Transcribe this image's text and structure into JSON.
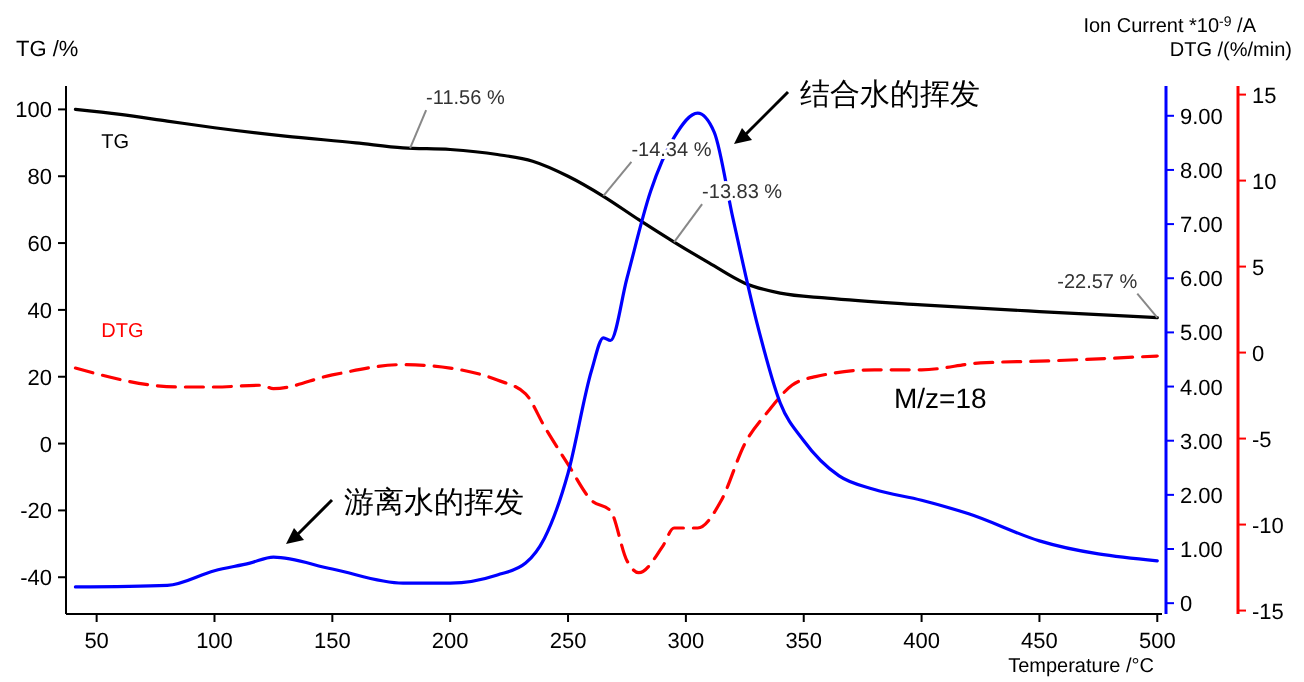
{
  "chart_data": {
    "type": "line",
    "xlabel": "Temperature /°C",
    "ylabel": "TG /%",
    "y2label": "Ion Current *10$^{-9}$ /A",
    "y3label": "DTG /(%/min)",
    "xlim": [
      37,
      502
    ],
    "xticks": [
      50,
      100,
      150,
      200,
      250,
      300,
      350,
      400,
      450,
      500
    ],
    "ylim": [
      -51,
      107
    ],
    "yticks": [
      -40,
      -20,
      0,
      20,
      40,
      60,
      80,
      100
    ],
    "y2lim": [
      -0.2,
      9.55
    ],
    "y2ticks": [
      {
        "value": 0,
        "label": "0"
      },
      {
        "value": 1,
        "label": "1.00"
      },
      {
        "value": 2,
        "label": "2.00"
      },
      {
        "value": 3,
        "label": "3.00"
      },
      {
        "value": 4,
        "label": "4.00"
      },
      {
        "value": 5,
        "label": "5.00"
      },
      {
        "value": 6,
        "label": "6.00"
      },
      {
        "value": 7,
        "label": "7.00"
      },
      {
        "value": 8,
        "label": "8.00"
      },
      {
        "value": 9,
        "label": "9.00"
      }
    ],
    "y3lim": [
      -15.2,
      15.5
    ],
    "y3ticks": [
      -15,
      -10,
      -5,
      0,
      5,
      10,
      15
    ],
    "grid": false,
    "series": [
      {
        "name": "TG",
        "color": "#000000",
        "axis": "y",
        "line_style": "solid",
        "x": [
          41,
          60,
          80,
          100,
          130,
          160,
          180,
          200,
          220,
          235,
          250,
          265,
          280,
          295,
          310,
          325,
          340,
          360,
          400,
          450,
          500
        ],
        "values": [
          100,
          98.5,
          96.5,
          94.5,
          92,
          90,
          88.5,
          88,
          86.5,
          84.5,
          80,
          74,
          67,
          60.3,
          54,
          48,
          45,
          43.5,
          41.5,
          39.5,
          37.7
        ]
      },
      {
        "name": "DTG",
        "color": "#ff0000",
        "axis": "y3",
        "line_style": "dashed",
        "x": [
          41,
          85,
          100,
          120,
          125,
          150,
          180,
          200,
          220,
          232,
          240,
          250,
          260,
          268,
          275,
          280,
          290,
          295,
          305,
          315,
          325,
          335,
          345,
          355,
          380,
          400,
          425,
          450,
          500
        ],
        "values": [
          -0.9,
          -2,
          -2,
          -1.9,
          -2.1,
          -1.3,
          -0.7,
          -0.9,
          -1.6,
          -2.4,
          -4.3,
          -6.5,
          -8.6,
          -9.2,
          -12.1,
          -12.8,
          -11.3,
          -10.2,
          -10.2,
          -8.6,
          -5.3,
          -3.4,
          -1.9,
          -1.4,
          -1,
          -1,
          -0.6,
          -0.5,
          -0.2
        ]
      },
      {
        "color": "#0000ff",
        "axis": "y2",
        "line_style": "solid",
        "x": [
          41,
          80,
          100,
          115,
          125,
          150,
          180,
          200,
          220,
          232,
          240,
          250,
          260,
          265,
          268,
          275,
          285,
          295,
          305,
          312,
          320,
          330,
          340,
          350,
          365,
          380,
          400,
          420,
          450,
          500
        ],
        "values": [
          0.3,
          0.33,
          0.6,
          0.74,
          0.85,
          0.63,
          0.37,
          0.37,
          0.52,
          0.74,
          1.2,
          2.4,
          4.3,
          4.9,
          4.85,
          6,
          7.6,
          8.6,
          9.05,
          8.7,
          7.1,
          5.2,
          3.7,
          3,
          2.35,
          2.1,
          1.9,
          1.65,
          1.15,
          0.78
        ]
      }
    ],
    "annotations": [
      {
        "text": "-11.56 %",
        "x": 183,
        "y": 88.4
      },
      {
        "text": "-14.34 %",
        "x": 265,
        "y": 74.1
      },
      {
        "text": "-13.83 %",
        "x": 295,
        "y": 60.3
      },
      {
        "text": "-22.57 %",
        "x": 500,
        "y": 37.7
      },
      "结合水的挥发",
      "游离水的挥发",
      "M/z=18"
    ]
  }
}
